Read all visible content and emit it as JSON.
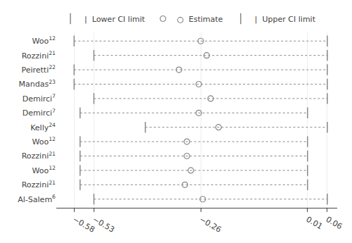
{
  "chart_data": {
    "type": "forest",
    "categories": [
      "Woo",
      "Rozzini",
      "Peiretti",
      "Mandas",
      "Demirci",
      "Demirci",
      "Kelly",
      "Woo",
      "Rozzini",
      "Woo",
      "Rozzini",
      "Al-Salem"
    ],
    "superscripts": [
      "12",
      "21",
      "22",
      "23",
      "7",
      "7",
      "24",
      "12",
      "21",
      "12",
      "21",
      "6"
    ],
    "series": [
      {
        "name": "|  Lower CI limit",
        "color": "#888888",
        "marker": "line-ns",
        "values": [
          -0.58,
          -0.53,
          -0.58,
          -0.58,
          -0.53,
          -0.565,
          -0.4,
          -0.565,
          -0.565,
          -0.565,
          -0.565,
          -0.53
        ]
      },
      {
        "name": "○  Estimate",
        "color": "#888888",
        "marker": "circle-open",
        "values": [
          -0.26,
          -0.245,
          -0.315,
          -0.265,
          -0.235,
          -0.265,
          -0.215,
          -0.295,
          -0.295,
          -0.285,
          -0.3,
          -0.255
        ]
      },
      {
        "name": "|  Upper CI limit",
        "color": "#888888",
        "marker": "line-ns",
        "values": [
          0.06,
          0.06,
          0.06,
          0.06,
          0.06,
          0.01,
          0.06,
          0.01,
          0.01,
          0.01,
          0.01,
          0.06
        ]
      }
    ],
    "xlim": [
      -0.625,
      0.085
    ],
    "xticks": [
      {
        "value": -0.58,
        "label": "−0.58"
      },
      {
        "value": -0.53,
        "label": "−0.53"
      },
      {
        "value": -0.26,
        "label": "−0.26"
      },
      0.01,
      0.06
    ],
    "grid": true,
    "legend": "top"
  }
}
